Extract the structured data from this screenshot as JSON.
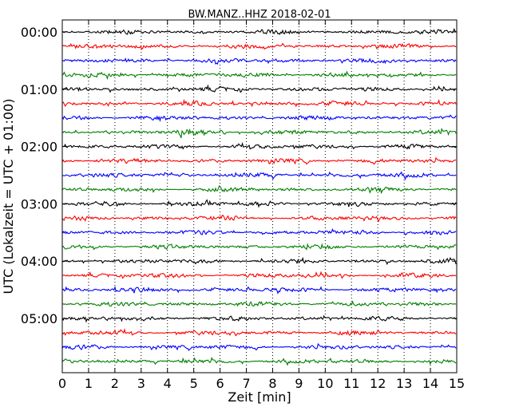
{
  "chart_data": {
    "type": "line",
    "title": "BW.MANZ..HHZ 2018-02-01",
    "xlabel": "Zeit  [min]",
    "ylabel": "UTC (Lokalzeit = UTC + 01:00)",
    "xlim": [
      0,
      15
    ],
    "x_ticks": [
      "0",
      "1",
      "2",
      "3",
      "4",
      "5",
      "6",
      "7",
      "8",
      "9",
      "10",
      "11",
      "12",
      "13",
      "14",
      "15"
    ],
    "y_ticks": [
      {
        "label": "00:00",
        "trace_index": 0
      },
      {
        "label": "01:00",
        "trace_index": 4
      },
      {
        "label": "02:00",
        "trace_index": 8
      },
      {
        "label": "03:00",
        "trace_index": 12
      },
      {
        "label": "04:00",
        "trace_index": 16
      },
      {
        "label": "05:00",
        "trace_index": 20
      }
    ],
    "trace_interval_minutes": 15,
    "trace_count": 24,
    "color_cycle": [
      "#000000",
      "#ff0000",
      "#0000ff",
      "#007f00"
    ],
    "grid": "vertical-dotted",
    "events": [
      {
        "trace_index": 7,
        "start_min": 4.3,
        "end_min": 6.2,
        "peak_min": 4.5
      }
    ]
  }
}
